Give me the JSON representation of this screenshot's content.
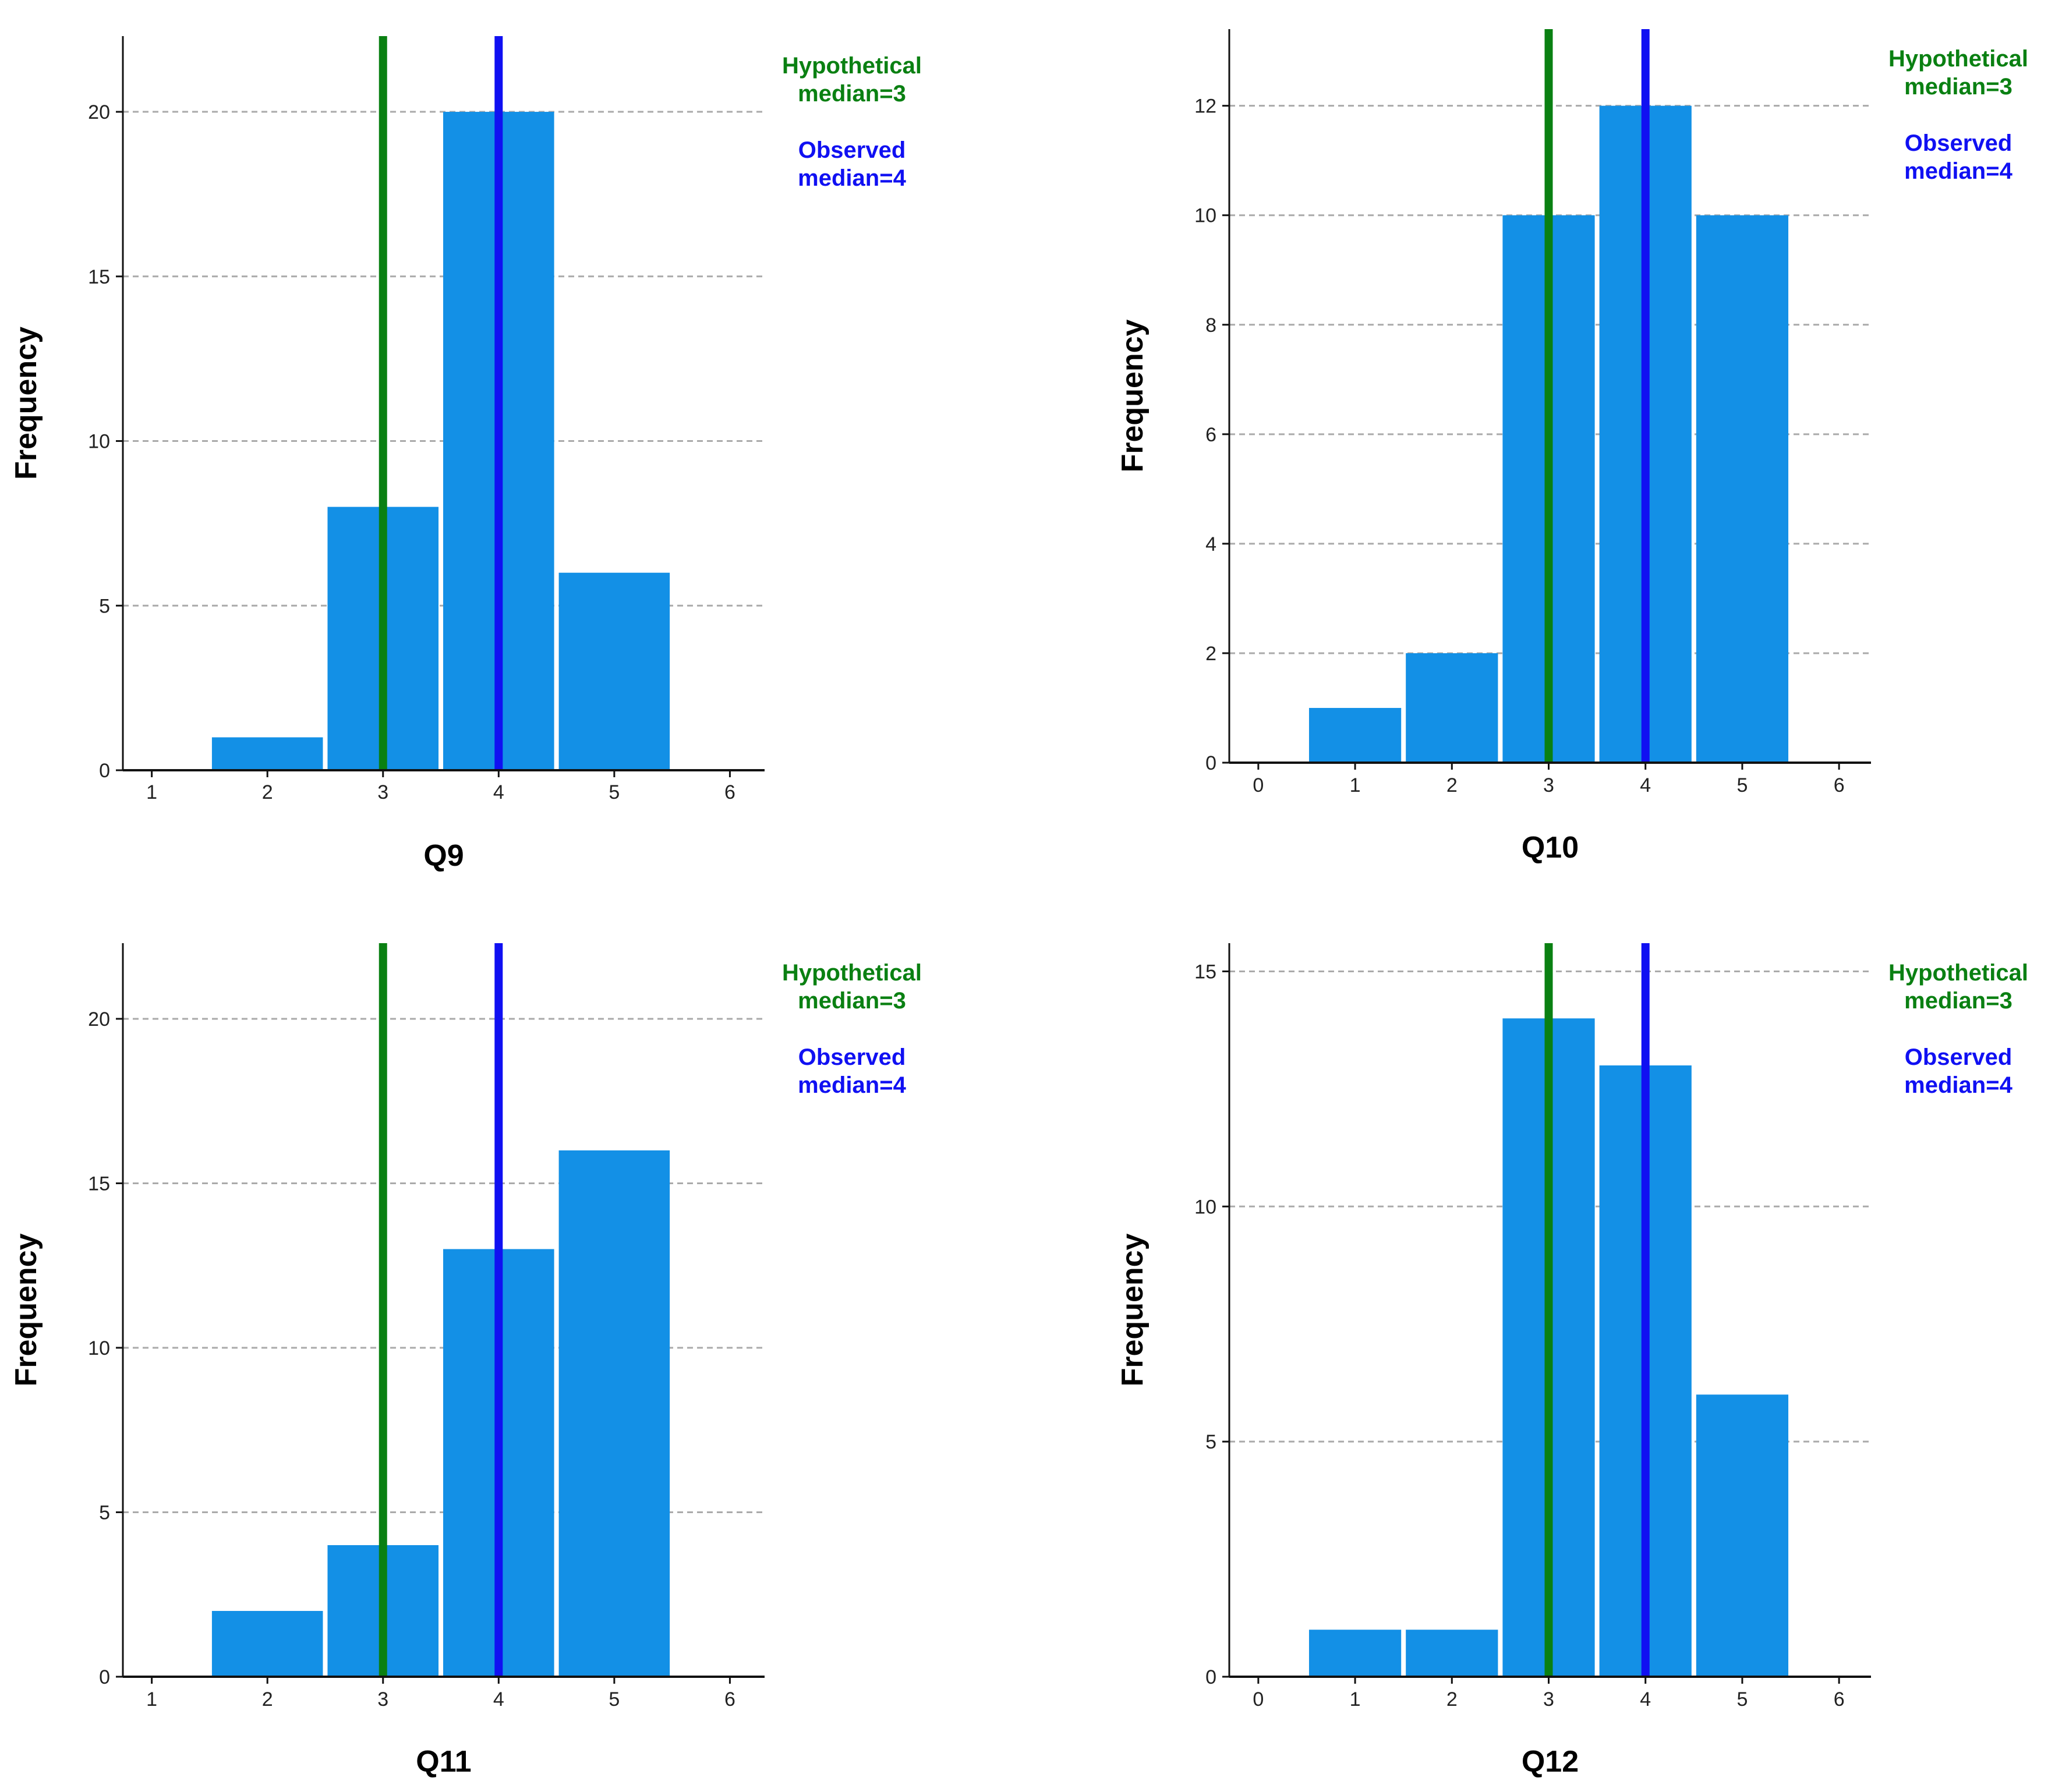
{
  "colors": {
    "bar": "#1390e6",
    "hypothetical": "#0a8012",
    "observed": "#1010f2",
    "grid": "#aaaaaa",
    "axis": "#111111"
  },
  "chart_data": [
    {
      "type": "bar",
      "title": "",
      "xlabel": "Q9",
      "ylabel": "Frequency",
      "categories": [
        1,
        2,
        3,
        4,
        5,
        6
      ],
      "x_ticks": [
        "1",
        "2",
        "3",
        "4",
        "5",
        "6"
      ],
      "values": [
        0,
        1,
        8,
        20,
        6,
        0
      ],
      "xlim": [
        0.75,
        6.3
      ],
      "ylim": [
        0,
        22.3
      ],
      "y_ticks": [
        0,
        5,
        10,
        15,
        20
      ],
      "grid": true,
      "hypothetical_median": 3,
      "observed_median": 4,
      "annotations": {
        "hyp_line1": "Hypothetical",
        "hyp_line2": "median=3",
        "obs_line1": "Observed",
        "obs_line2": "median=4"
      }
    },
    {
      "type": "bar",
      "title": "",
      "xlabel": "Q10",
      "ylabel": "Frequency",
      "categories": [
        0,
        1,
        2,
        3,
        4,
        5,
        6
      ],
      "x_ticks": [
        "0",
        "1",
        "2",
        "3",
        "4",
        "5",
        "6"
      ],
      "values": [
        0,
        1,
        2,
        10,
        12,
        10,
        0
      ],
      "xlim": [
        -0.3,
        6.33
      ],
      "ylim": [
        0,
        13.4
      ],
      "y_ticks": [
        0,
        2,
        4,
        6,
        8,
        10,
        12
      ],
      "grid": true,
      "hypothetical_median": 3,
      "observed_median": 4,
      "annotations": {
        "hyp_line1": "Hypothetical",
        "hyp_line2": "median=3",
        "obs_line1": "Observed",
        "obs_line2": "median=4"
      }
    },
    {
      "type": "bar",
      "title": "",
      "xlabel": "Q11",
      "ylabel": "Frequency",
      "categories": [
        1,
        2,
        3,
        4,
        5,
        6
      ],
      "x_ticks": [
        "1",
        "2",
        "3",
        "4",
        "5",
        "6"
      ],
      "values": [
        0,
        2,
        4,
        13,
        16,
        0
      ],
      "xlim": [
        0.75,
        6.3
      ],
      "ylim": [
        0,
        22.3
      ],
      "y_ticks": [
        0,
        5,
        10,
        15,
        20
      ],
      "grid": true,
      "hypothetical_median": 3,
      "observed_median": 4,
      "annotations": {
        "hyp_line1": "Hypothetical",
        "hyp_line2": "median=3",
        "obs_line1": "Observed",
        "obs_line2": "median=4"
      }
    },
    {
      "type": "bar",
      "title": "",
      "xlabel": "Q12",
      "ylabel": "Frequency",
      "categories": [
        0,
        1,
        2,
        3,
        4,
        5,
        6
      ],
      "x_ticks": [
        "0",
        "1",
        "2",
        "3",
        "4",
        "5",
        "6"
      ],
      "values": [
        0,
        1,
        1,
        14,
        13,
        6,
        0
      ],
      "xlim": [
        -0.3,
        6.33
      ],
      "ylim": [
        0,
        15.6
      ],
      "y_ticks": [
        0,
        5,
        10,
        15
      ],
      "grid": true,
      "hypothetical_median": 3,
      "observed_median": 4,
      "annotations": {
        "hyp_line1": "Hypothetical",
        "hyp_line2": "median=3",
        "obs_line1": "Observed",
        "obs_line2": "median=4"
      }
    }
  ]
}
